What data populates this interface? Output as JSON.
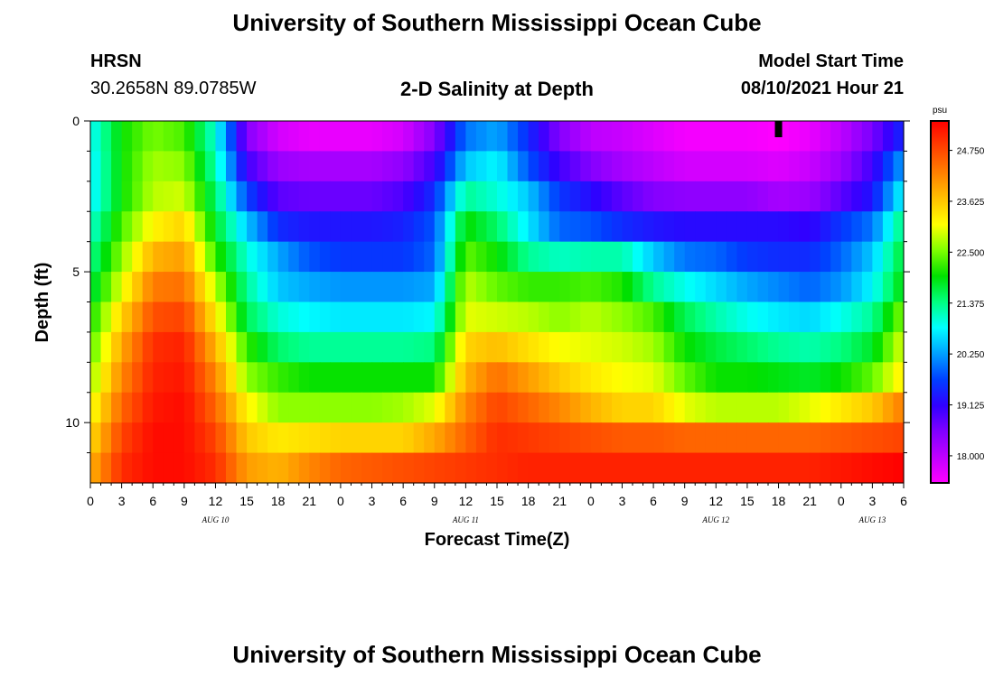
{
  "header": {
    "title_top": "University of Southern Mississippi Ocean Cube",
    "title_bottom": "University of Southern Mississippi Ocean Cube",
    "station": "HRSN",
    "coords": "30.2658N  89.0785W",
    "plot_title": "2-D Salinity at Depth",
    "model_start_label": "Model Start Time",
    "model_start_value": "08/10/2021 Hour 21"
  },
  "colors": {
    "palette": [
      "#ff00ff",
      "#c000ff",
      "#8000ff",
      "#3000ff",
      "#0040ff",
      "#00a0ff",
      "#00ffff",
      "#00ff80",
      "#00e000",
      "#80ff00",
      "#ffff00",
      "#ffc000",
      "#ff8000",
      "#ff4000",
      "#ff0000"
    ],
    "marker": "#000000"
  },
  "chart_data": {
    "type": "heatmap",
    "title": "2-D Salinity at Depth",
    "xlabel": "Forecast Time(Z)",
    "ylabel": "Depth (ft)",
    "x_tick_labels": [
      "0",
      "3",
      "6",
      "9",
      "12",
      "15",
      "18",
      "21",
      "0",
      "3",
      "6",
      "9",
      "12",
      "15",
      "18",
      "21",
      "0",
      "3",
      "6",
      "9",
      "12",
      "15",
      "18",
      "21",
      "0",
      "3",
      "6"
    ],
    "x_range_hours": [
      0,
      78
    ],
    "date_labels": [
      {
        "text": "AUG 10",
        "hour": 12
      },
      {
        "text": "AUG 11",
        "hour": 36
      },
      {
        "text": "AUG 12",
        "hour": 60
      },
      {
        "text": "AUG 13",
        "hour": 75
      }
    ],
    "y_tick_labels": [
      "0",
      "5",
      "10"
    ],
    "y_ticks": [
      0,
      5,
      10
    ],
    "y_minor_ticks": [
      1,
      2,
      3,
      4,
      6,
      7,
      8,
      9,
      11
    ],
    "y_range_ft": [
      0,
      12
    ],
    "depths_ft": [
      0.5,
      1.5,
      2.5,
      3.5,
      4.5,
      5.5,
      6.5,
      7.5,
      8.5,
      9.5,
      10.5,
      11.5
    ],
    "current_time_marker_hour": 66,
    "colorbar": {
      "unit": "psu",
      "min": 17.4,
      "max": 25.4,
      "tick_labels": [
        "24.750",
        "23.625",
        "22.500",
        "21.375",
        "20.250",
        "19.125",
        "18.000"
      ],
      "ticks": [
        24.75,
        23.625,
        22.5,
        21.375,
        20.25,
        19.125,
        18.0
      ]
    },
    "salinity_keyframes": {
      "hours": [
        0,
        3,
        6,
        9,
        12,
        15,
        18,
        21,
        24,
        27,
        30,
        33,
        36,
        39,
        42,
        45,
        48,
        51,
        54,
        57,
        60,
        63,
        66,
        69,
        72,
        75,
        78
      ],
      "rows": [
        [
          20.8,
          22.0,
          22.5,
          22.3,
          21.0,
          18.5,
          17.8,
          17.6,
          17.6,
          17.6,
          17.8,
          18.5,
          20.0,
          20.3,
          19.5,
          18.5,
          18.0,
          17.9,
          17.7,
          17.5,
          17.5,
          17.5,
          17.4,
          17.6,
          18.0,
          18.6,
          19.5
        ],
        [
          20.7,
          22.0,
          22.7,
          22.6,
          21.2,
          19.0,
          18.3,
          18.2,
          18.2,
          18.2,
          18.4,
          19.0,
          20.5,
          20.8,
          19.8,
          19.0,
          18.5,
          18.2,
          18.0,
          17.8,
          17.8,
          17.8,
          17.7,
          17.9,
          18.3,
          19.0,
          20.3
        ],
        [
          20.7,
          22.0,
          22.8,
          22.9,
          21.5,
          19.7,
          18.8,
          18.7,
          18.7,
          18.7,
          18.9,
          19.5,
          21.3,
          21.0,
          20.5,
          19.6,
          19.2,
          18.8,
          18.5,
          18.4,
          18.4,
          18.4,
          18.2,
          18.3,
          18.8,
          19.3,
          20.9
        ],
        [
          21.0,
          22.3,
          23.2,
          23.5,
          21.8,
          20.5,
          19.5,
          19.3,
          19.3,
          19.3,
          19.4,
          19.8,
          22.0,
          21.5,
          20.7,
          19.9,
          19.8,
          19.5,
          19.3,
          19.2,
          19.2,
          19.2,
          19.2,
          19.1,
          19.6,
          20.0,
          21.5
        ],
        [
          21.3,
          22.6,
          23.8,
          24.0,
          22.2,
          21.0,
          20.3,
          19.8,
          19.6,
          19.6,
          19.6,
          19.9,
          22.4,
          22.0,
          21.3,
          21.1,
          21.2,
          21.2,
          20.5,
          20.0,
          19.9,
          19.6,
          19.5,
          19.5,
          19.9,
          20.5,
          21.8
        ],
        [
          21.6,
          23.0,
          24.3,
          24.4,
          22.8,
          21.3,
          20.5,
          20.3,
          20.2,
          20.2,
          20.2,
          20.3,
          22.8,
          22.4,
          22.2,
          22.2,
          22.3,
          22.1,
          21.3,
          20.9,
          20.6,
          20.3,
          20.1,
          19.9,
          20.2,
          20.8,
          22.0
        ],
        [
          22.0,
          23.5,
          24.7,
          24.8,
          23.3,
          21.6,
          21.0,
          20.8,
          20.7,
          20.7,
          20.7,
          20.8,
          23.0,
          22.9,
          22.8,
          22.6,
          22.8,
          22.6,
          22.3,
          21.6,
          21.2,
          20.9,
          20.7,
          20.6,
          20.9,
          21.3,
          22.6
        ],
        [
          22.3,
          23.9,
          25.0,
          25.1,
          23.8,
          22.2,
          21.5,
          21.3,
          21.3,
          21.3,
          21.3,
          21.4,
          23.5,
          23.7,
          23.4,
          23.1,
          23.0,
          22.9,
          22.7,
          22.0,
          21.7,
          21.5,
          21.3,
          21.2,
          21.4,
          21.8,
          23.0
        ],
        [
          22.6,
          24.2,
          25.1,
          25.2,
          24.2,
          22.6,
          22.2,
          22.0,
          22.0,
          22.0,
          22.0,
          22.0,
          23.8,
          24.4,
          24.0,
          23.6,
          23.3,
          23.1,
          23.0,
          22.4,
          22.0,
          22.0,
          21.9,
          21.8,
          22.0,
          22.4,
          23.3
        ],
        [
          23.0,
          24.5,
          25.2,
          25.3,
          24.5,
          23.2,
          22.6,
          22.6,
          22.6,
          22.6,
          22.7,
          23.0,
          24.2,
          24.8,
          24.5,
          24.2,
          23.8,
          23.5,
          23.5,
          23.0,
          22.8,
          22.8,
          22.8,
          23.0,
          23.3,
          23.6,
          24.3
        ],
        [
          23.4,
          24.8,
          25.3,
          25.3,
          24.8,
          23.6,
          23.3,
          23.4,
          23.5,
          23.5,
          23.5,
          23.9,
          24.5,
          25.0,
          24.9,
          24.8,
          24.7,
          24.6,
          24.6,
          24.5,
          24.5,
          24.5,
          24.5,
          24.5,
          24.6,
          24.7,
          24.8
        ],
        [
          23.8,
          25.0,
          25.3,
          25.3,
          25.0,
          24.0,
          23.8,
          24.2,
          24.5,
          24.6,
          24.7,
          24.8,
          24.9,
          25.0,
          25.1,
          25.1,
          25.1,
          25.1,
          25.1,
          25.1,
          25.1,
          25.1,
          25.1,
          25.1,
          25.2,
          25.3,
          25.4
        ]
      ]
    }
  }
}
